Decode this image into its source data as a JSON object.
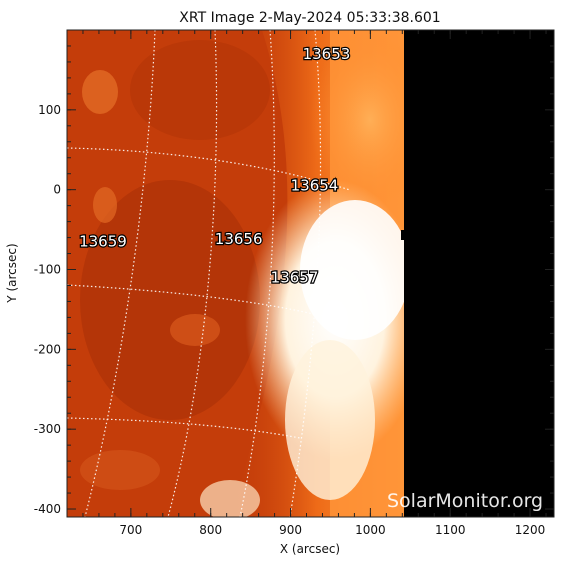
{
  "title": "XRT Image   2-May-2024 05:33:38.601",
  "watermark": "SolarMonitor.org",
  "colors": {
    "disk": "#c43d0a",
    "disk_dark": "#a12d07",
    "limb": "#ff8a2a",
    "bright": "#fff6e6",
    "off_field": "#000000",
    "grid": "#ffffff"
  },
  "chart_data": {
    "type": "heatmap",
    "title": "XRT Image   2-May-2024 05:33:38.601",
    "xlabel": "X (arcsec)",
    "ylabel": "Y (arcsec)",
    "xlim": [
      620,
      1230
    ],
    "ylim": [
      -410,
      200
    ],
    "xticks": [
      700,
      800,
      900,
      1000,
      1100,
      1200
    ],
    "yticks": [
      100,
      0,
      -100,
      -200,
      -300,
      -400
    ],
    "field_of_view_x": [
      620,
      1040
    ],
    "grid": true,
    "active_regions": [
      {
        "label": "13653",
        "x": 945,
        "y": 170
      },
      {
        "label": "13654",
        "x": 930,
        "y": 5
      },
      {
        "label": "13659",
        "x": 665,
        "y": -65
      },
      {
        "label": "13656",
        "x": 835,
        "y": -62
      },
      {
        "label": "13657",
        "x": 905,
        "y": -110
      }
    ]
  }
}
